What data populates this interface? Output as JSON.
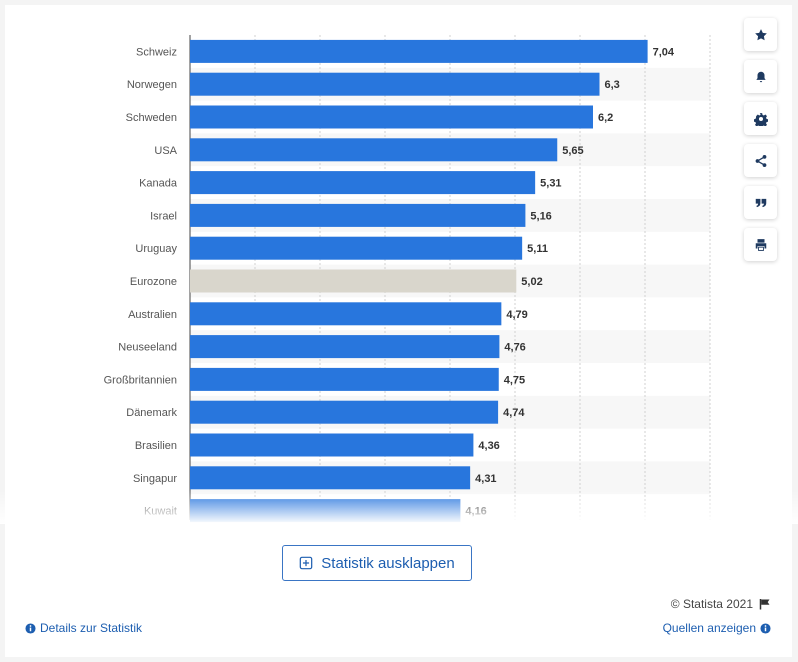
{
  "chart_data": {
    "type": "bar",
    "orientation": "horizontal",
    "categories": [
      "Schweiz",
      "Norwegen",
      "Schweden",
      "USA",
      "Kanada",
      "Israel",
      "Uruguay",
      "Eurozone",
      "Australien",
      "Neuseeland",
      "Großbritannien",
      "Dänemark",
      "Brasilien",
      "Singapur",
      "Kuwait"
    ],
    "values": [
      7.04,
      6.3,
      6.2,
      5.65,
      5.31,
      5.16,
      5.11,
      5.02,
      4.79,
      4.76,
      4.75,
      4.74,
      4.36,
      4.31,
      4.16
    ],
    "value_labels": [
      "7,04",
      "6,3",
      "6,2",
      "5,65",
      "5,31",
      "5,16",
      "5,11",
      "5,02",
      "4,79",
      "4,76",
      "4,75",
      "4,74",
      "4,36",
      "4,31",
      "4,16"
    ],
    "highlight_category": "Eurozone",
    "xlim": [
      0,
      8
    ],
    "grid": true,
    "title": "",
    "xlabel": "",
    "ylabel": ""
  },
  "colors": {
    "bar": "#2876dd",
    "highlight_bar": "#d9d6cc",
    "grid": "#d0d0d0",
    "stripe": "#f7f7f7"
  },
  "toolbar": {
    "icons": [
      "star-icon",
      "bell-icon",
      "gear-icon",
      "share-icon",
      "quote-icon",
      "print-icon"
    ]
  },
  "expand_button": {
    "label": "Statistik ausklappen"
  },
  "footer": {
    "copyright": "© Statista 2021",
    "details_link": "Details zur Statistik",
    "sources_link": "Quellen anzeigen"
  }
}
